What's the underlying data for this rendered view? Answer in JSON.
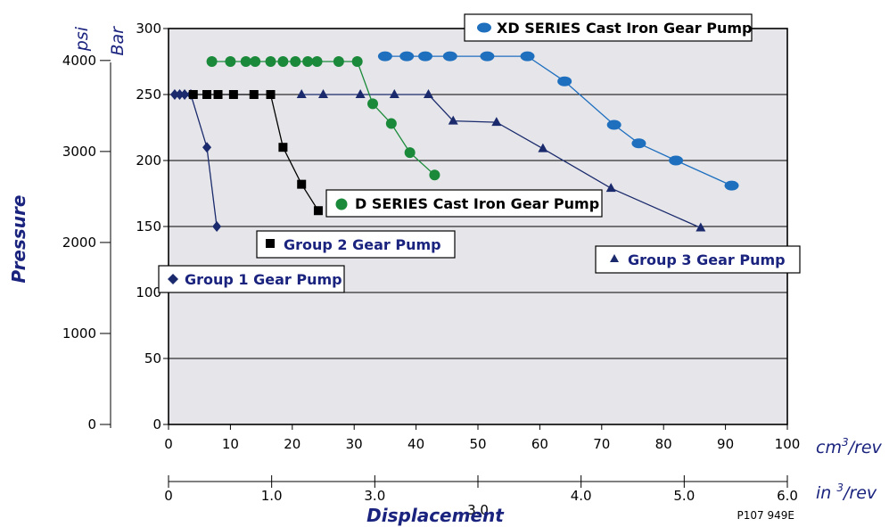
{
  "chart_data": {
    "type": "line",
    "xlabel": "Displacement",
    "ylabel": "Pressure",
    "units": {
      "psi": "psi",
      "bar": "Bar",
      "cm3_base": "cm",
      "cm3_sup": "3",
      "cm3_rest": "/rev",
      "in3_base": "in ",
      "in3_sup": "3",
      "in3_rest": "/rev"
    },
    "xlim": [
      0,
      100
    ],
    "bar_lim": [
      0,
      300
    ],
    "x_ticks": [
      "0",
      "10",
      "20",
      "30",
      "40",
      "50",
      "60",
      "70",
      "80",
      "90",
      "100"
    ],
    "bar_ticks": [
      "0",
      "50",
      "100",
      "150",
      "200",
      "250",
      "300"
    ],
    "psi_ticks": [
      "0",
      "1000",
      "2000",
      "3000",
      "4000"
    ],
    "in_ticks": [
      "0",
      "1.0",
      "3.0",
      "3.0",
      "4.0",
      "5.0",
      "6.0"
    ],
    "grid": true,
    "series": [
      {
        "name": "Group 1 Gear Pump",
        "color": "#1a2a6c",
        "marker": "diamond",
        "x": [
          1.0,
          1.8,
          2.6,
          3.6,
          6.2,
          7.8
        ],
        "y": [
          250,
          250,
          250,
          250,
          210,
          150
        ]
      },
      {
        "name": "Group 2 Gear Pump",
        "color": "#000000",
        "marker": "square",
        "x": [
          4.0,
          6.2,
          8.0,
          10.5,
          13.8,
          16.5,
          18.5,
          21.5,
          24.2
        ],
        "y": [
          250,
          250,
          250,
          250,
          250,
          250,
          210,
          182,
          162
        ]
      },
      {
        "name": "Group 3 Gear Pump",
        "color": "#1a2a6c",
        "marker": "triangle",
        "x": [
          21.5,
          25.0,
          31.0,
          36.5,
          42.0,
          46.0,
          53.0,
          60.5,
          71.5,
          86.0
        ],
        "y": [
          250,
          250,
          250,
          250,
          250,
          230,
          229,
          209,
          179,
          149
        ]
      },
      {
        "name": "D SERIES Cast Iron Gear Pump",
        "color": "#1a8a3a",
        "marker": "circle",
        "x": [
          7.0,
          10.0,
          12.5,
          14.0,
          16.5,
          18.5,
          20.5,
          22.5,
          24.0,
          27.5,
          30.5,
          33.0,
          36.0,
          39.0,
          43.0
        ],
        "y": [
          275,
          275,
          275,
          275,
          275,
          275,
          275,
          275,
          275,
          275,
          275,
          243,
          228,
          206,
          189
        ]
      },
      {
        "name": "XD SERIES Cast Iron Gear Pump",
        "color": "#1f6fbf",
        "marker": "ellipse",
        "x": [
          35.0,
          38.5,
          41.5,
          45.5,
          51.5,
          58.0,
          64.0,
          72.0,
          76.0,
          82.0,
          91.0
        ],
        "y": [
          279,
          279,
          279,
          279,
          279,
          279,
          260,
          227,
          213,
          200,
          181
        ]
      }
    ],
    "annotations": {
      "code": "P107 949E"
    }
  }
}
